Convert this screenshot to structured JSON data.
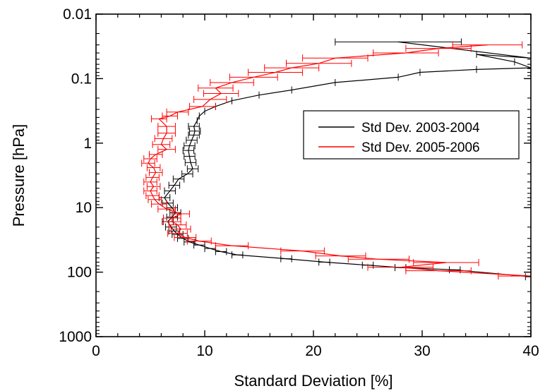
{
  "chart_data": {
    "type": "line",
    "title": "",
    "xlabel": "Standard Deviation [%]",
    "ylabel": "Pressure [hPa]",
    "xlim": [
      0,
      40
    ],
    "ylim": [
      0.01,
      1000
    ],
    "y_scale": "log",
    "y_inverted": true,
    "grid": false,
    "legend_position": "right",
    "x_ticks": [
      0,
      10,
      20,
      30,
      40
    ],
    "x_tick_labels": [
      "0",
      "10",
      "20",
      "30",
      "40"
    ],
    "y_ticks": [
      0.01,
      0.1,
      1,
      10,
      100,
      1000
    ],
    "y_tick_labels": [
      "0.01",
      "0.1",
      "1",
      "10",
      "100",
      "1000"
    ],
    "series": [
      {
        "name": "Std Dev. 2003-2004",
        "color": "#000000",
        "points": [
          [
            27.8,
            0.027
          ],
          [
            40.0,
            0.048
          ],
          [
            35.0,
            0.042
          ],
          [
            38.5,
            0.055
          ],
          [
            40.0,
            0.068
          ],
          [
            35.0,
            0.072
          ],
          [
            29.8,
            0.08
          ],
          [
            27.8,
            0.095
          ],
          [
            22.0,
            0.115
          ],
          [
            18.0,
            0.15
          ],
          [
            15.0,
            0.18
          ],
          [
            12.5,
            0.22
          ],
          [
            11.0,
            0.27
          ],
          [
            10.0,
            0.32
          ],
          [
            9.5,
            0.38
          ],
          [
            9.3,
            0.45
          ],
          [
            9.0,
            0.55
          ],
          [
            9.1,
            0.65
          ],
          [
            9.0,
            0.75
          ],
          [
            8.8,
            0.9
          ],
          [
            8.6,
            1.1
          ],
          [
            8.5,
            1.3
          ],
          [
            8.6,
            1.6
          ],
          [
            8.7,
            2.0
          ],
          [
            8.9,
            2.5
          ],
          [
            8.4,
            3.0
          ],
          [
            7.6,
            3.6
          ],
          [
            7.2,
            4.5
          ],
          [
            6.8,
            5.5
          ],
          [
            6.3,
            7.0
          ],
          [
            6.6,
            8.5
          ],
          [
            7.0,
            10.0
          ],
          [
            7.3,
            12.0
          ],
          [
            7.0,
            14.0
          ],
          [
            6.6,
            16.5
          ],
          [
            6.9,
            20.0
          ],
          [
            7.2,
            23.0
          ],
          [
            7.5,
            26.0
          ],
          [
            8.0,
            30.0
          ],
          [
            8.6,
            34.0
          ],
          [
            9.5,
            38.0
          ],
          [
            10.5,
            43.0
          ],
          [
            11.5,
            48.0
          ],
          [
            13.0,
            54.0
          ],
          [
            17.5,
            62.0
          ],
          [
            21.0,
            70.0
          ],
          [
            25.0,
            78.0
          ],
          [
            28.0,
            85.0
          ],
          [
            33.0,
            92.0
          ],
          [
            40.0,
            118.0
          ]
        ],
        "xerr": [
          5.8,
          0,
          0,
          0,
          0,
          0,
          0,
          0,
          0,
          0,
          0,
          0,
          0,
          0,
          0,
          0,
          0.5,
          0.5,
          0.5,
          0.5,
          0.5,
          0.5,
          0.5,
          0.5,
          0.5,
          0.5,
          0.5,
          0.5,
          0.5,
          0.5,
          0.5,
          0.5,
          0.5,
          0.5,
          0.5,
          0.5,
          0.5,
          0.5,
          0.5,
          0.5,
          0.5,
          0.5,
          0.5,
          0.5,
          0.5,
          0.5,
          0.5,
          0.5,
          0.5,
          0.5
        ]
      },
      {
        "name": "Std Dev. 2005-2006",
        "color": "#ff0000",
        "points": [
          [
            36.0,
            0.03
          ],
          [
            31.5,
            0.034
          ],
          [
            28.5,
            0.04
          ],
          [
            22.0,
            0.048
          ],
          [
            20.5,
            0.058
          ],
          [
            18.0,
            0.068
          ],
          [
            16.5,
            0.08
          ],
          [
            14.5,
            0.095
          ],
          [
            12.5,
            0.115
          ],
          [
            11.0,
            0.14
          ],
          [
            11.5,
            0.17
          ],
          [
            10.5,
            0.21
          ],
          [
            9.8,
            0.27
          ],
          [
            7.5,
            0.33
          ],
          [
            6.8,
            0.38
          ],
          [
            5.8,
            0.42
          ],
          [
            6.5,
            0.55
          ],
          [
            6.5,
            0.7
          ],
          [
            6.2,
            0.85
          ],
          [
            6.0,
            1.05
          ],
          [
            6.5,
            1.25
          ],
          [
            5.5,
            1.5
          ],
          [
            5.0,
            1.75
          ],
          [
            4.8,
            2.05
          ],
          [
            5.3,
            2.4
          ],
          [
            5.5,
            2.85
          ],
          [
            5.2,
            3.4
          ],
          [
            5.0,
            4.0
          ],
          [
            5.3,
            4.7
          ],
          [
            5.0,
            5.5
          ],
          [
            5.2,
            6.5
          ],
          [
            5.4,
            7.5
          ],
          [
            5.8,
            8.8
          ],
          [
            6.5,
            10.5
          ],
          [
            7.8,
            12.5
          ],
          [
            7.0,
            14.5
          ],
          [
            7.0,
            16.5
          ],
          [
            7.5,
            18.5
          ],
          [
            7.8,
            21.5
          ],
          [
            7.5,
            25.0
          ],
          [
            8.2,
            29.0
          ],
          [
            9.5,
            33.0
          ],
          [
            12.5,
            39.0
          ],
          [
            19.0,
            47.0
          ],
          [
            22.5,
            56.0
          ],
          [
            26.0,
            63.0
          ],
          [
            32.2,
            71.0
          ],
          [
            28.0,
            84.0
          ],
          [
            31.5,
            95.0
          ],
          [
            40.0,
            115.0
          ]
        ],
        "xerr": [
          3.2,
          3.0,
          3.0,
          3.0,
          3.0,
          2.5,
          2.5,
          2.2,
          2.0,
          1.6,
          1.6,
          1.5,
          1.2,
          1.0,
          0.7,
          0.7,
          0.8,
          0.8,
          0.8,
          0.8,
          0.8,
          0.6,
          0.6,
          0.6,
          0.6,
          0.6,
          0.6,
          0.6,
          0.6,
          0.6,
          0.6,
          0.6,
          0.7,
          0.8,
          0.8,
          0.8,
          0.8,
          0.8,
          0.9,
          0.9,
          1.0,
          1.1,
          1.5,
          2.0,
          2.3,
          2.8,
          3.0,
          3.0,
          3.0,
          3.0
        ]
      }
    ]
  }
}
